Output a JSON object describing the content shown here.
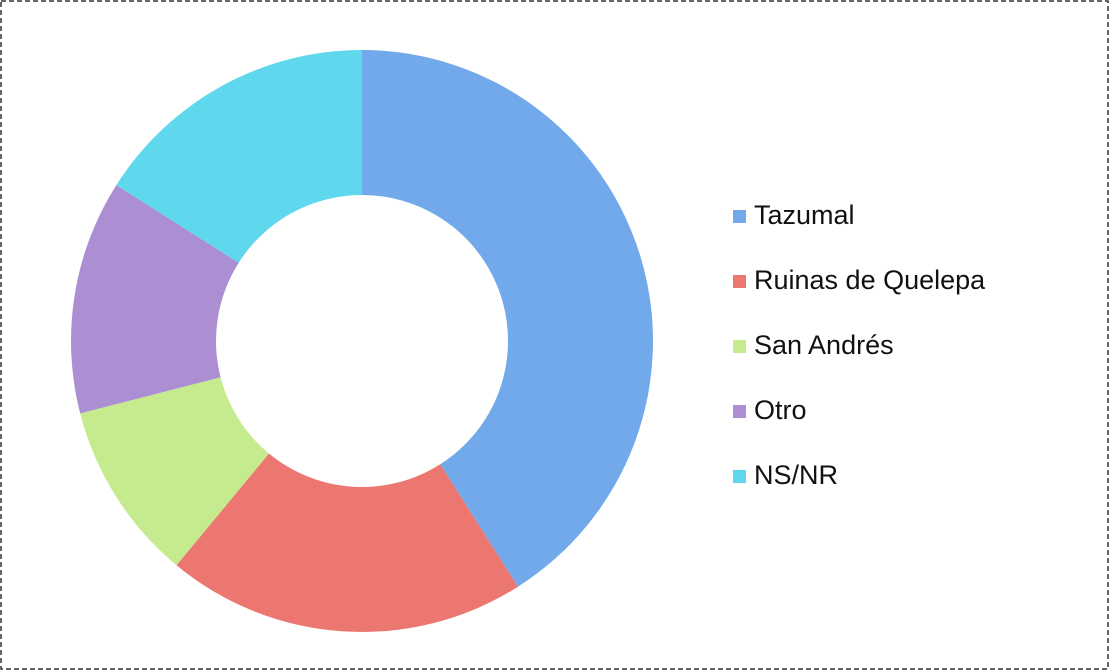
{
  "chart_data": {
    "type": "donut",
    "categories": [
      "Tazumal",
      "Ruinas de Quelepa",
      "San Andrés",
      "Otro",
      "NS/NR"
    ],
    "values": [
      41,
      20,
      10,
      13,
      16
    ],
    "colors": [
      "#72a9eb",
      "#ec7770",
      "#c6eb8e",
      "#ac8fd2",
      "#5fd8ee"
    ],
    "legend": "right"
  }
}
